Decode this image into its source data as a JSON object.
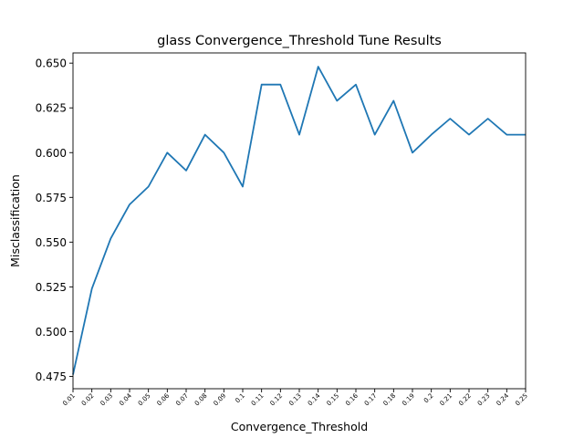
{
  "chart_data": {
    "type": "line",
    "title": "glass Convergence_Threshold Tune Results",
    "xlabel": "Convergence_Threshold",
    "ylabel": "Misclassification",
    "categories": [
      "0.01",
      "0.02",
      "0.03",
      "0.04",
      "0.05",
      "0.06",
      "0.07",
      "0.08",
      "0.09",
      "0.1",
      "0.11",
      "0.12",
      "0.13",
      "0.14",
      "0.15",
      "0.16",
      "0.17",
      "0.18",
      "0.19",
      "0.2",
      "0.21",
      "0.22",
      "0.23",
      "0.24",
      "0.25"
    ],
    "series": [
      {
        "values": [
          0.476,
          0.524,
          0.552,
          0.571,
          0.581,
          0.6,
          0.59,
          0.61,
          0.6,
          0.581,
          0.638,
          0.638,
          0.61,
          0.648,
          0.629,
          0.638,
          0.61,
          0.629,
          0.6,
          0.61,
          0.619,
          0.61,
          0.619,
          0.61,
          0.61
        ],
        "color": "#1f77b4"
      }
    ],
    "yticks": [
      "0.475",
      "0.500",
      "0.525",
      "0.550",
      "0.575",
      "0.600",
      "0.625",
      "0.650"
    ],
    "ylim": [
      0.4681,
      0.6557
    ],
    "grid": false,
    "legend": "none"
  }
}
